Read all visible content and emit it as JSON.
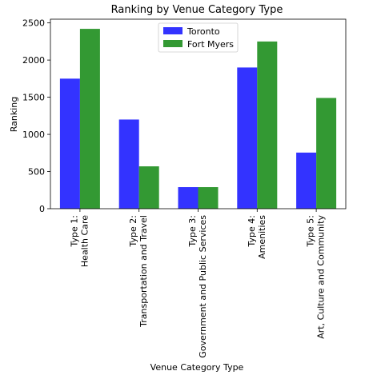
{
  "chart_data": {
    "type": "bar",
    "title": "Ranking by Venue Category Type",
    "xlabel": "Venue Category Type",
    "ylabel": "Ranking",
    "ylim": [
      0,
      2550
    ],
    "yticks": [
      0,
      500,
      1000,
      1500,
      2000,
      2500
    ],
    "grid": false,
    "legend_position": "top-center",
    "categories": [
      [
        "Type 1:",
        "Health Care"
      ],
      [
        "Type 2:",
        "Transportation and Travel"
      ],
      [
        "Type 3:",
        "Government and Public Services"
      ],
      [
        "Type 4:",
        "Amenities"
      ],
      [
        "Type 5:",
        "Art, Culture and Community"
      ]
    ],
    "series": [
      {
        "name": "Toronto",
        "color": "#3333ff",
        "values": [
          1750,
          1200,
          290,
          1900,
          755
        ]
      },
      {
        "name": "Fort Myers",
        "color": "#339933",
        "values": [
          2420,
          570,
          290,
          2250,
          1490
        ]
      }
    ]
  }
}
